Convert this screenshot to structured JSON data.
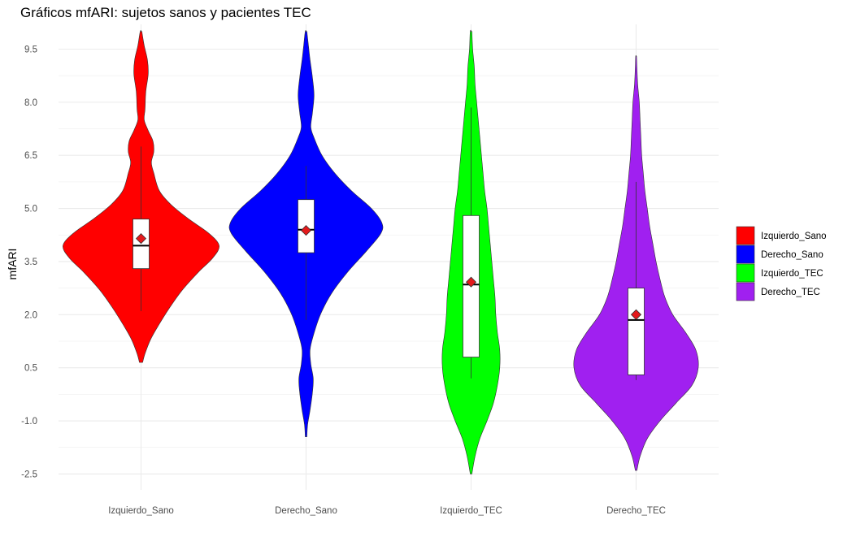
{
  "chart_data": {
    "type": "violin",
    "title": "Gráficos mfARI: sujetos sanos y pacientes TEC",
    "xlabel": "",
    "ylabel": "mfARI",
    "ylim": [
      -2.95,
      10.2
    ],
    "yticks": [
      -2.5,
      -1.0,
      0.5,
      2.0,
      3.5,
      5.0,
      6.5,
      8.0,
      9.5
    ],
    "ytick_labels": [
      "-2.5",
      "-1.0",
      "0.5",
      "2.0",
      "3.5",
      "5.0",
      "6.5",
      "8.0",
      "9.5"
    ],
    "grid": true,
    "legend_position": "right",
    "categories": [
      "Izquierdo_Sano",
      "Derecho_Sano",
      "Izquierdo_TEC",
      "Derecho_TEC"
    ],
    "series": [
      {
        "name": "Izquierdo_Sano",
        "color": "#ff0000",
        "box": {
          "whisker_low": 2.1,
          "q1": 3.3,
          "median": 3.95,
          "q3": 4.7,
          "whisker_high": 6.75
        },
        "mean": 4.15,
        "violin_range": [
          0.65,
          10.0
        ],
        "density": [
          [
            0.65,
            0.02
          ],
          [
            0.9,
            0.05
          ],
          [
            1.3,
            0.12
          ],
          [
            1.7,
            0.22
          ],
          [
            2.2,
            0.36
          ],
          [
            2.7,
            0.52
          ],
          [
            3.2,
            0.72
          ],
          [
            3.6,
            0.9
          ],
          [
            3.95,
            0.98
          ],
          [
            4.3,
            0.85
          ],
          [
            4.7,
            0.6
          ],
          [
            5.1,
            0.38
          ],
          [
            5.5,
            0.23
          ],
          [
            6.0,
            0.16
          ],
          [
            6.3,
            0.13
          ],
          [
            6.6,
            0.16
          ],
          [
            6.9,
            0.15
          ],
          [
            7.2,
            0.09
          ],
          [
            7.5,
            0.04
          ],
          [
            7.8,
            0.05
          ],
          [
            8.3,
            0.06
          ],
          [
            8.8,
            0.09
          ],
          [
            9.2,
            0.08
          ],
          [
            9.6,
            0.04
          ],
          [
            10.0,
            0.01
          ]
        ]
      },
      {
        "name": "Derecho_Sano",
        "color": "#0000ff",
        "box": {
          "whisker_low": 1.85,
          "q1": 3.75,
          "median": 4.4,
          "q3": 5.25,
          "whisker_high": 6.2
        },
        "mean": 4.38,
        "violin_range": [
          -1.45,
          10.0
        ],
        "density": [
          [
            -1.45,
            0.01
          ],
          [
            -1.1,
            0.02
          ],
          [
            -0.7,
            0.05
          ],
          [
            -0.2,
            0.08
          ],
          [
            0.2,
            0.09
          ],
          [
            0.6,
            0.06
          ],
          [
            1.0,
            0.05
          ],
          [
            1.4,
            0.09
          ],
          [
            2.0,
            0.18
          ],
          [
            2.6,
            0.32
          ],
          [
            3.2,
            0.52
          ],
          [
            3.8,
            0.76
          ],
          [
            4.3,
            0.94
          ],
          [
            4.6,
            0.95
          ],
          [
            5.0,
            0.82
          ],
          [
            5.5,
            0.57
          ],
          [
            6.0,
            0.36
          ],
          [
            6.5,
            0.2
          ],
          [
            7.0,
            0.1
          ],
          [
            7.3,
            0.06
          ],
          [
            7.7,
            0.08
          ],
          [
            8.2,
            0.1
          ],
          [
            8.7,
            0.08
          ],
          [
            9.2,
            0.05
          ],
          [
            9.6,
            0.03
          ],
          [
            10.0,
            0.01
          ]
        ]
      },
      {
        "name": "Izquierdo_TEC",
        "color": "#00ff00",
        "box": {
          "whisker_low": 0.2,
          "q1": 0.8,
          "median": 2.85,
          "q3": 4.8,
          "whisker_high": 7.85
        },
        "mean": 2.92,
        "violin_range": [
          -2.5,
          10.0
        ],
        "density": [
          [
            -2.5,
            0.01
          ],
          [
            -2.0,
            0.05
          ],
          [
            -1.5,
            0.11
          ],
          [
            -1.0,
            0.2
          ],
          [
            -0.5,
            0.28
          ],
          [
            0.0,
            0.33
          ],
          [
            0.5,
            0.36
          ],
          [
            1.0,
            0.36
          ],
          [
            1.5,
            0.33
          ],
          [
            2.0,
            0.31
          ],
          [
            2.5,
            0.3
          ],
          [
            3.0,
            0.28
          ],
          [
            3.5,
            0.26
          ],
          [
            4.0,
            0.24
          ],
          [
            4.5,
            0.22
          ],
          [
            5.0,
            0.2
          ],
          [
            5.5,
            0.17
          ],
          [
            6.0,
            0.15
          ],
          [
            6.5,
            0.13
          ],
          [
            7.0,
            0.11
          ],
          [
            7.5,
            0.09
          ],
          [
            8.0,
            0.07
          ],
          [
            8.5,
            0.05
          ],
          [
            9.0,
            0.04
          ],
          [
            9.5,
            0.02
          ],
          [
            10.0,
            0.01
          ]
        ]
      },
      {
        "name": "Derecho_TEC",
        "color": "#a020f0",
        "box": {
          "whisker_low": 0.15,
          "q1": 0.3,
          "median": 1.85,
          "q3": 2.75,
          "whisker_high": 5.75
        },
        "mean": 2.0,
        "violin_range": [
          -2.4,
          9.3
        ],
        "density": [
          [
            -2.4,
            0.01
          ],
          [
            -2.0,
            0.05
          ],
          [
            -1.5,
            0.14
          ],
          [
            -1.0,
            0.3
          ],
          [
            -0.5,
            0.5
          ],
          [
            0.0,
            0.7
          ],
          [
            0.5,
            0.78
          ],
          [
            1.0,
            0.75
          ],
          [
            1.5,
            0.62
          ],
          [
            2.0,
            0.46
          ],
          [
            2.5,
            0.36
          ],
          [
            3.0,
            0.3
          ],
          [
            3.5,
            0.25
          ],
          [
            4.0,
            0.21
          ],
          [
            4.5,
            0.17
          ],
          [
            5.0,
            0.14
          ],
          [
            5.5,
            0.11
          ],
          [
            6.0,
            0.09
          ],
          [
            6.5,
            0.07
          ],
          [
            7.0,
            0.06
          ],
          [
            7.5,
            0.05
          ],
          [
            8.0,
            0.04
          ],
          [
            8.5,
            0.02
          ],
          [
            9.0,
            0.01
          ],
          [
            9.3,
            0.005
          ]
        ]
      }
    ]
  }
}
